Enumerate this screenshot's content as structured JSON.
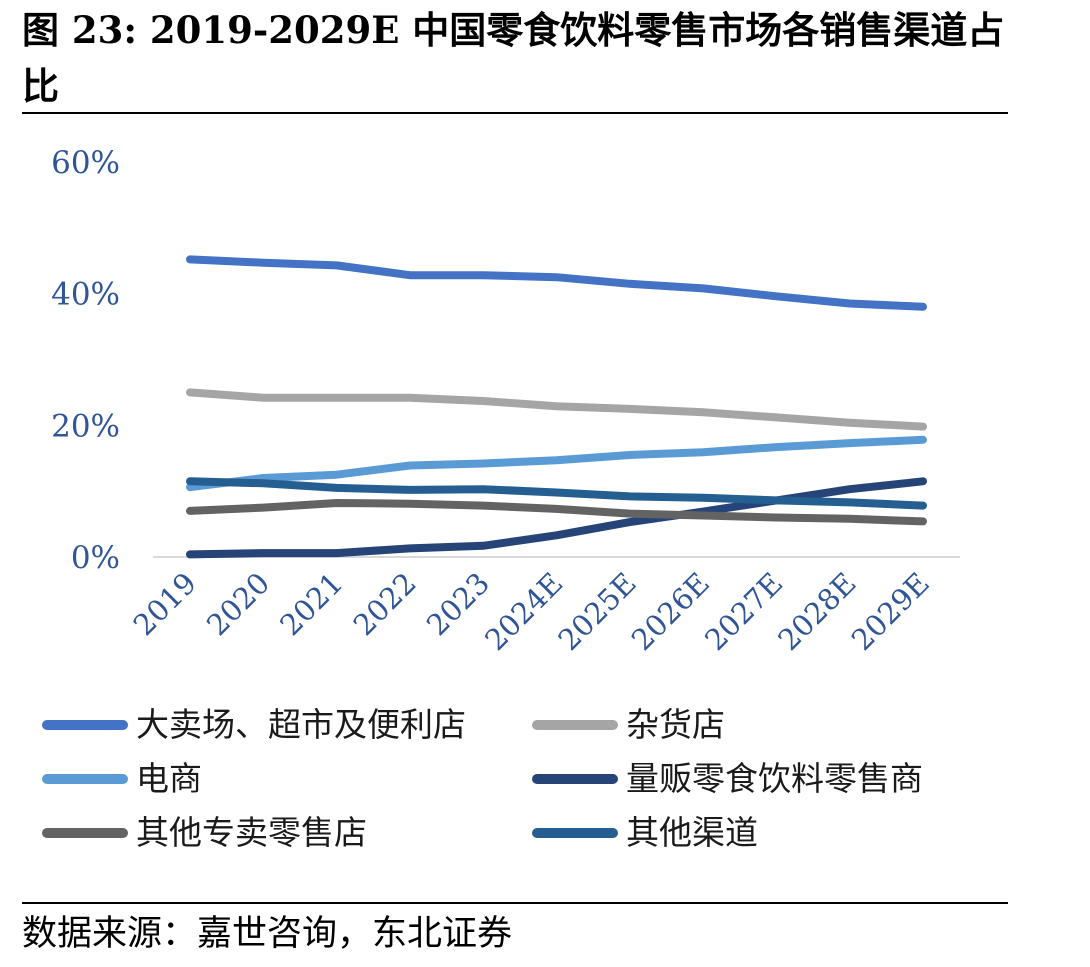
{
  "figure": {
    "title": "图 23: 2019-2029E 中国零食饮料零售市场各销售渠道占比",
    "source": "数据来源：嘉世咨询，东北证券"
  },
  "chart_data": {
    "type": "line",
    "title": "",
    "xlabel": "",
    "ylabel": "",
    "categories": [
      "2019",
      "2020",
      "2021",
      "2022",
      "2023",
      "2024E",
      "2025E",
      "2026E",
      "2027E",
      "2028E",
      "2029E"
    ],
    "ylim": [
      0,
      60
    ],
    "yticks": [
      0,
      20,
      40,
      60
    ],
    "ytick_labels": [
      "0%",
      "20%",
      "40%",
      "60%"
    ],
    "grid": false,
    "legend_position": "bottom",
    "series": [
      {
        "name": "大卖场、超市及便利店",
        "color": "#4472C4",
        "values": [
          45.2,
          44.7,
          44.3,
          42.8,
          42.8,
          42.5,
          41.5,
          40.8,
          39.6,
          38.5,
          38.0
        ]
      },
      {
        "name": "杂货店",
        "color": "#A5A5A5",
        "values": [
          25.0,
          24.2,
          24.2,
          24.2,
          23.7,
          22.9,
          22.5,
          22.0,
          21.2,
          20.4,
          19.8
        ]
      },
      {
        "name": "电商",
        "color": "#5B9BD5",
        "values": [
          10.6,
          12.0,
          12.5,
          13.9,
          14.2,
          14.7,
          15.5,
          15.9,
          16.7,
          17.3,
          17.8
        ]
      },
      {
        "name": "量贩零食饮料零售商",
        "color": "#264478",
        "values": [
          0.4,
          0.6,
          0.6,
          1.3,
          1.7,
          3.3,
          5.3,
          6.9,
          8.6,
          10.3,
          11.5
        ]
      },
      {
        "name": "其他专卖零售店",
        "color": "#636363",
        "values": [
          7.0,
          7.5,
          8.2,
          8.1,
          7.8,
          7.3,
          6.6,
          6.3,
          6.0,
          5.8,
          5.4
        ]
      },
      {
        "name": "其他渠道",
        "color": "#255E91",
        "values": [
          11.5,
          11.2,
          10.5,
          10.2,
          10.3,
          9.8,
          9.2,
          9.0,
          8.6,
          8.3,
          7.8
        ]
      }
    ]
  }
}
